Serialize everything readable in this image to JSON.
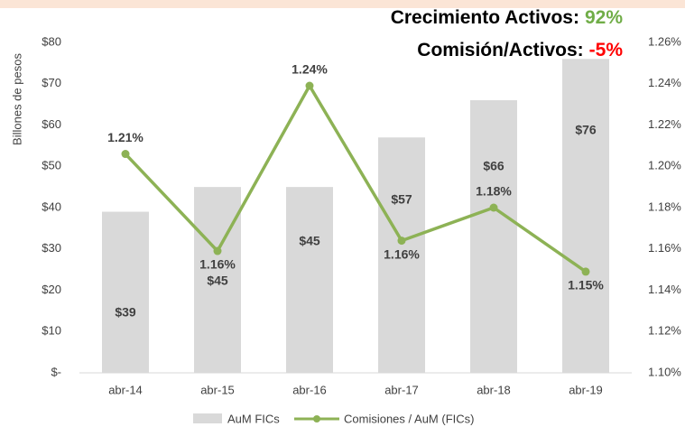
{
  "chart_data": {
    "type": "bar+line",
    "annotations": [
      {
        "text": "Crecimiento Activos:",
        "value": "92%",
        "color": "#70ad47"
      },
      {
        "text": "Comisión/Activos:",
        "value": "-5%",
        "color": "#ff0000"
      }
    ],
    "ylabel": "Billones de pesos",
    "categories": [
      "abr-14",
      "abr-15",
      "abr-16",
      "abr-17",
      "abr-18",
      "abr-19"
    ],
    "series": [
      {
        "name": "AuM FICs",
        "type": "bar",
        "color": "#d9d9d9",
        "values": [
          39,
          45,
          45,
          57,
          66,
          76
        ],
        "value_labels": [
          "$39",
          "$45",
          "$45",
          "$57",
          "$66",
          "$76"
        ]
      },
      {
        "name": "Comisiones / AuM (FICs)",
        "type": "line",
        "axis": "y2",
        "color": "#8db255",
        "values": [
          1.206,
          1.159,
          1.239,
          1.164,
          1.18,
          1.149
        ],
        "value_labels": [
          "1.21%",
          "1.16%",
          "1.24%",
          "1.16%",
          "1.18%",
          "1.15%"
        ]
      }
    ],
    "ylim": [
      0,
      80
    ],
    "yticks": [
      {
        "value": 0,
        "label": "$-"
      },
      {
        "value": 10,
        "label": "$10"
      },
      {
        "value": 20,
        "label": "$20"
      },
      {
        "value": 30,
        "label": "$30"
      },
      {
        "value": 40,
        "label": "$40"
      },
      {
        "value": 50,
        "label": "$50"
      },
      {
        "value": 60,
        "label": "$60"
      },
      {
        "value": 70,
        "label": "$70"
      },
      {
        "value": 80,
        "label": "$80"
      }
    ],
    "y2lim": [
      1.1,
      1.26
    ],
    "y2ticks": [
      {
        "value": 1.1,
        "label": "1.10%"
      },
      {
        "value": 1.12,
        "label": "1.12%"
      },
      {
        "value": 1.14,
        "label": "1.14%"
      },
      {
        "value": 1.16,
        "label": "1.16%"
      },
      {
        "value": 1.18,
        "label": "1.18%"
      },
      {
        "value": 1.2,
        "label": "1.20%"
      },
      {
        "value": 1.22,
        "label": "1.22%"
      },
      {
        "value": 1.24,
        "label": "1.24%"
      },
      {
        "value": 1.26,
        "label": "1.26%"
      }
    ],
    "grid": false,
    "legend": "bottom"
  }
}
